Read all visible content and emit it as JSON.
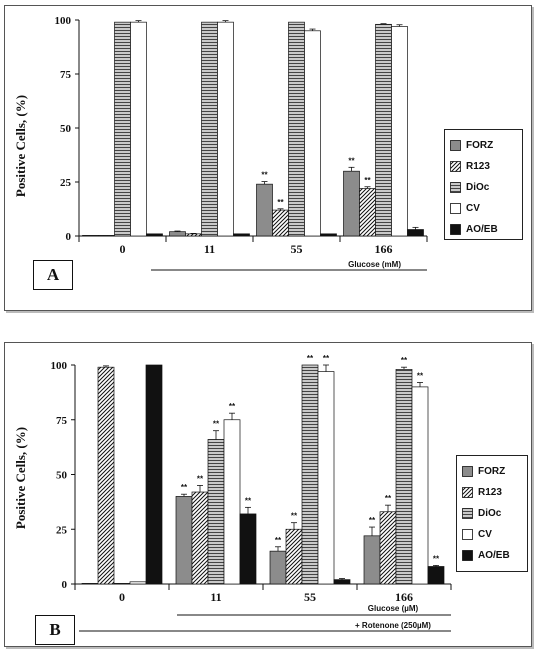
{
  "chart_data": [
    {
      "panel": "A",
      "type": "bar",
      "ylabel": "Positive Cells, (%)",
      "ylim": [
        0,
        100
      ],
      "yticks": [
        "0",
        "25",
        "50",
        "75",
        "100"
      ],
      "categories": [
        "0",
        "11",
        "55",
        "166"
      ],
      "x_note": "Glucose (mM)",
      "series": [
        {
          "name": "FORZ",
          "values": [
            0,
            2,
            24,
            30
          ],
          "err": [
            0,
            0.3,
            1.2,
            1.8
          ],
          "sig": [
            "",
            "",
            "**",
            "**"
          ]
        },
        {
          "name": "R123",
          "values": [
            0,
            1,
            12,
            22
          ],
          "err": [
            0,
            0.2,
            0.6,
            0.8
          ],
          "sig": [
            "",
            "",
            "**",
            "**"
          ]
        },
        {
          "name": "DiOc",
          "values": [
            99,
            99,
            99,
            98
          ],
          "err": [
            0,
            0,
            0,
            0.3
          ],
          "sig": [
            "",
            "",
            "",
            ""
          ]
        },
        {
          "name": "CV",
          "values": [
            99,
            99,
            95,
            97
          ],
          "err": [
            0.7,
            0.7,
            0.8,
            0.8
          ],
          "sig": [
            "",
            "",
            "",
            ""
          ]
        },
        {
          "name": "AO/EB",
          "values": [
            1,
            1,
            1,
            3
          ],
          "err": [
            0,
            0,
            0,
            1
          ],
          "sig": [
            "",
            "",
            "",
            ""
          ]
        }
      ],
      "grid": false,
      "legend_position": "right"
    },
    {
      "panel": "B",
      "type": "bar",
      "ylabel": "Positive Cells, (%)",
      "ylim": [
        0,
        100
      ],
      "yticks": [
        "0",
        "25",
        "50",
        "75",
        "100"
      ],
      "categories": [
        "0",
        "11",
        "55",
        "166"
      ],
      "x_note": "Glucose (µM)",
      "x_note2": "+ Rotenone (250µM)",
      "series": [
        {
          "name": "FORZ",
          "values": [
            0,
            40,
            15,
            22
          ],
          "err": [
            0,
            1,
            2,
            4
          ],
          "sig": [
            "",
            "**",
            "**",
            "**"
          ]
        },
        {
          "name": "R123",
          "values": [
            99,
            42,
            25,
            33
          ],
          "err": [
            0.6,
            3,
            3,
            3
          ],
          "sig": [
            "",
            "**",
            "**",
            "**"
          ]
        },
        {
          "name": "DiOc",
          "values": [
            0,
            66,
            100,
            98
          ],
          "err": [
            0,
            4,
            0,
            1
          ],
          "sig": [
            "",
            "**",
            "**",
            "**"
          ]
        },
        {
          "name": "CV",
          "values": [
            1,
            75,
            97,
            90
          ],
          "err": [
            0,
            3,
            3,
            2
          ],
          "sig": [
            "",
            "**",
            "**",
            "**"
          ]
        },
        {
          "name": "AO/EB",
          "values": [
            100,
            32,
            2,
            8
          ],
          "err": [
            0,
            3,
            0.5,
            0.5
          ],
          "sig": [
            "",
            "**",
            "",
            "**"
          ]
        }
      ],
      "grid": false,
      "legend_position": "right"
    }
  ],
  "panels": {
    "a": {
      "label": "A",
      "ylabel": "Positive Cells, (%)",
      "x_note": "Glucose (mM)"
    },
    "b": {
      "label": "B",
      "ylabel": "Positive Cells, (%)",
      "x_note": "Glucose (µM)",
      "x_note2": "+ Rotenone (250µM)"
    }
  },
  "legend": {
    "items": [
      {
        "label": "FORZ",
        "fill": "#8c8c8c",
        "pattern": "solid"
      },
      {
        "label": "R123",
        "fill": "#ffffff",
        "pattern": "diagonal"
      },
      {
        "label": "DiOc",
        "fill": "#aaaaaa",
        "pattern": "horizontal"
      },
      {
        "label": "CV",
        "fill": "#ffffff",
        "pattern": "none"
      },
      {
        "label": "AO/EB",
        "fill": "#111111",
        "pattern": "solid"
      }
    ]
  },
  "colors": {
    "axis": "#111111",
    "frame": "#555555"
  }
}
